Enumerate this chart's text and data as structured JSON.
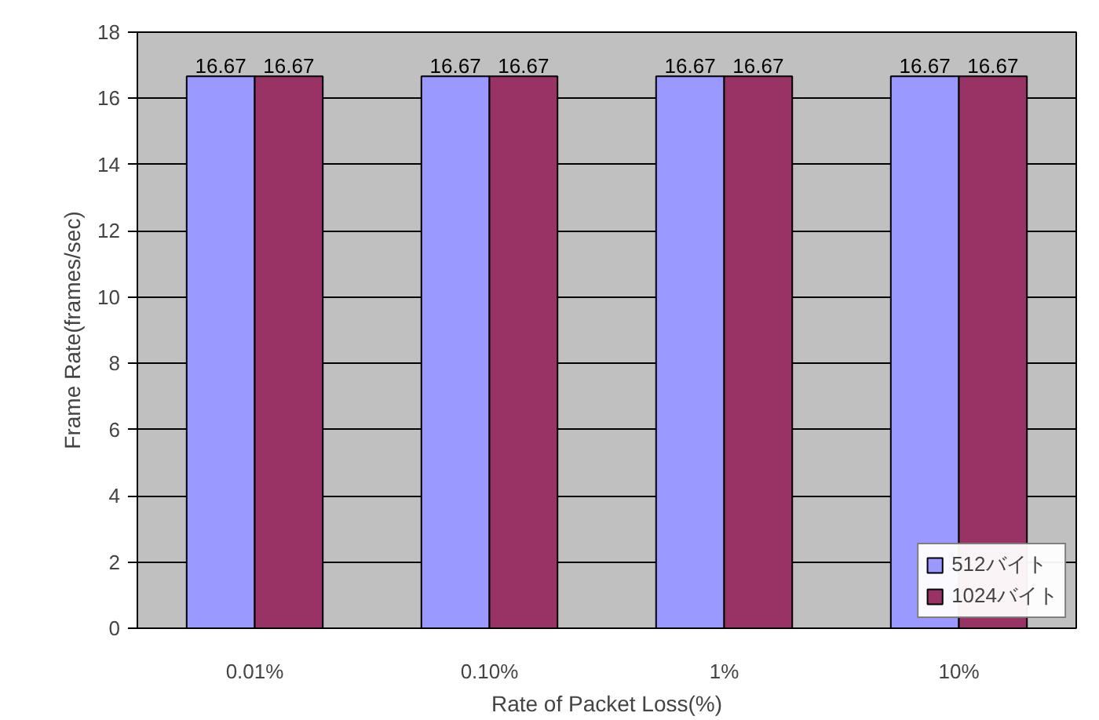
{
  "chart_data": {
    "type": "bar",
    "xlabel": "Rate of Packet Loss(%)",
    "ylabel": "Frame Rate(frames/sec)",
    "categories": [
      "0.01%",
      "0.10%",
      "1%",
      "10%"
    ],
    "series": [
      {
        "name": "512バイト",
        "color": "#9999ff",
        "values": [
          16.67,
          16.67,
          16.67,
          16.67
        ]
      },
      {
        "name": "1024バイト",
        "color": "#993366",
        "values": [
          16.67,
          16.67,
          16.67,
          16.67
        ]
      }
    ],
    "ylim": [
      0,
      18
    ],
    "yticks": [
      0,
      2,
      4,
      6,
      8,
      10,
      12,
      14,
      16,
      18
    ],
    "grid": "y",
    "legend": "bottom right",
    "data_labels": true
  }
}
